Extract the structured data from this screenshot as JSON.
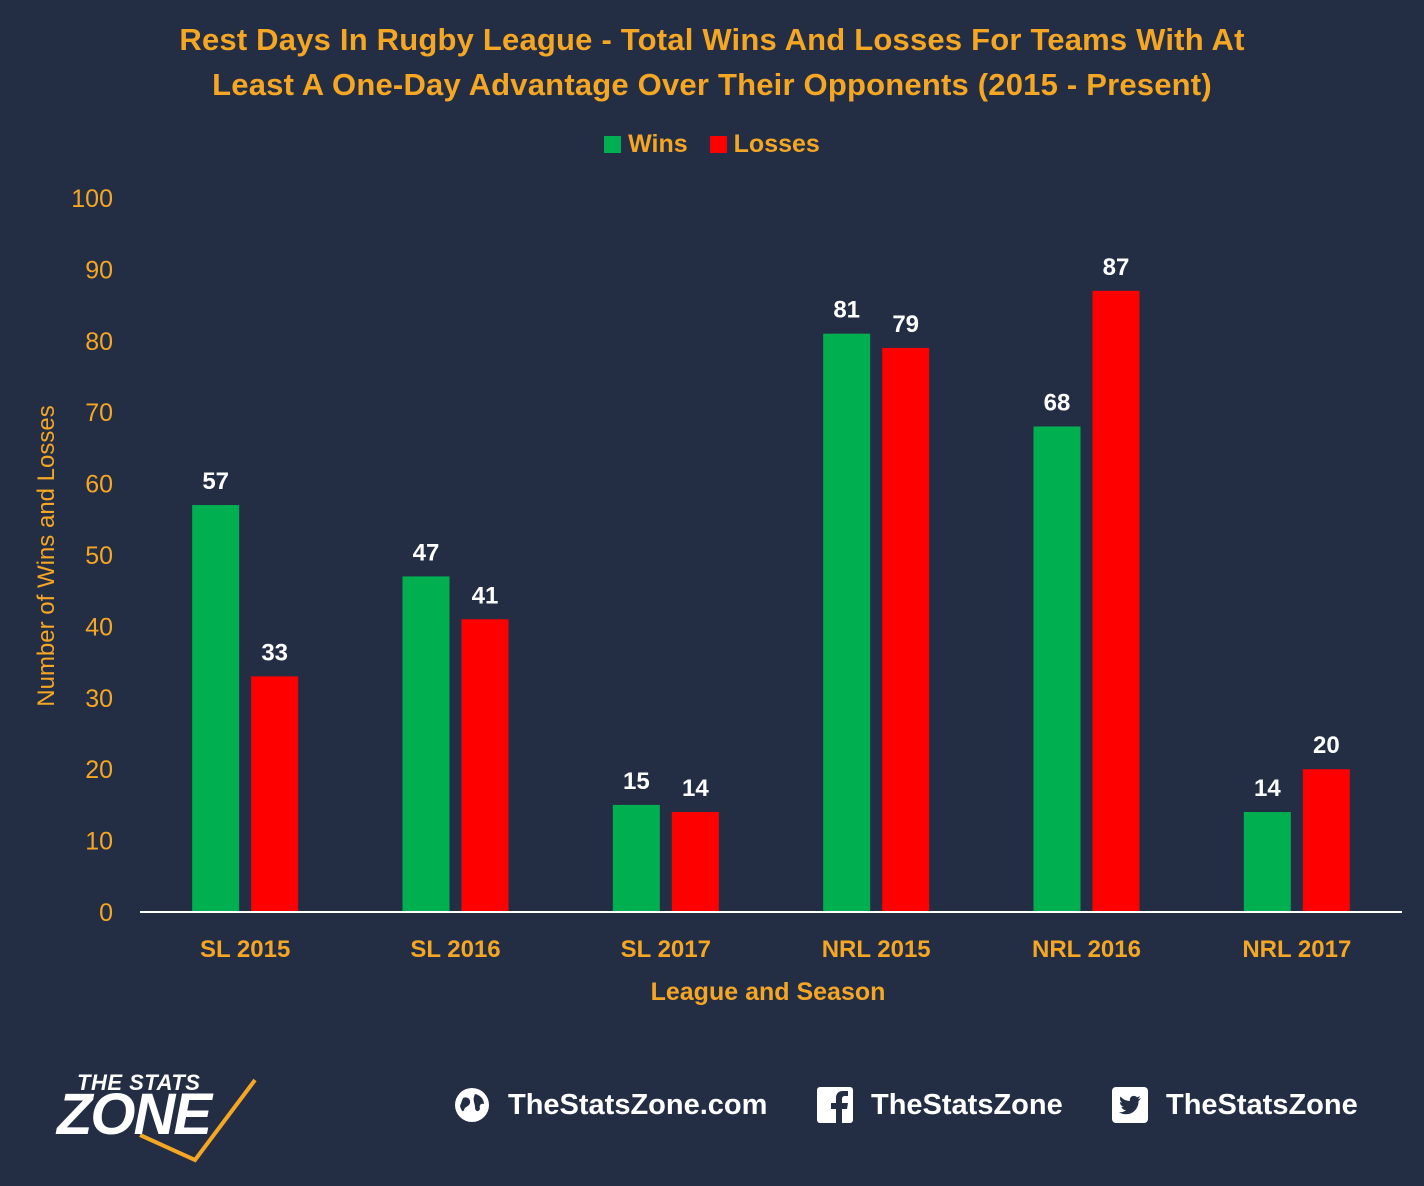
{
  "chart_data": {
    "type": "bar",
    "title_line1": "Rest Days In Rugby League - Total Wins And Losses For Teams With At",
    "title_line2": "Least A One-Day Advantage Over Their Opponents (2015 - Present)",
    "xlabel": "League and Season",
    "ylabel": "Number of Wins and Losses",
    "categories": [
      "SL 2015",
      "SL 2016",
      "SL 2017",
      "NRL 2015",
      "NRL 2016",
      "NRL 2017"
    ],
    "series": [
      {
        "name": "Wins",
        "color": "#00b050",
        "values": [
          57,
          47,
          15,
          81,
          68,
          14
        ]
      },
      {
        "name": "Losses",
        "color": "#ff0000",
        "values": [
          33,
          41,
          14,
          79,
          87,
          20
        ]
      }
    ],
    "ylim": [
      0,
      100
    ],
    "yticks": [
      0,
      10,
      20,
      30,
      40,
      50,
      60,
      70,
      80,
      90,
      100
    ],
    "legend_position": "top-center",
    "grid": false,
    "data_labels": true
  },
  "colors": {
    "background": "#232e45",
    "text_accent": "#f5a623",
    "data_label": "#ffffff",
    "axis_line": "#ffffff"
  },
  "footer": {
    "brand_top": "THE STATS",
    "brand_bottom": "ZONE",
    "website": "TheStatsZone.com",
    "facebook": "TheStatsZone",
    "twitter": "TheStatsZone",
    "website_icon": "globe-icon",
    "facebook_icon": "facebook-icon",
    "twitter_icon": "twitter-icon"
  }
}
